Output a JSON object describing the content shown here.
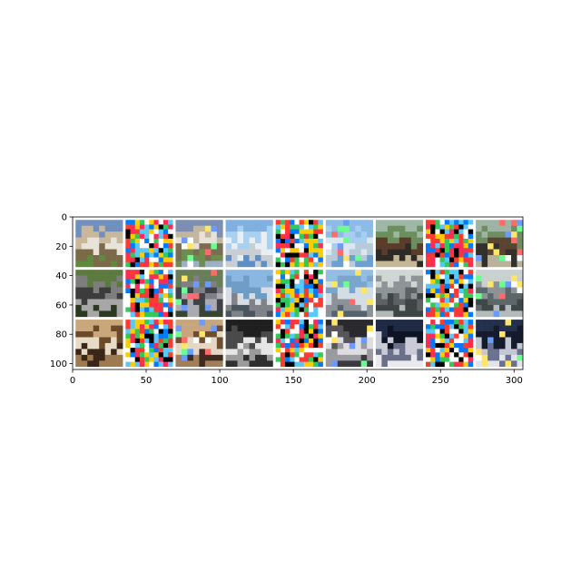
{
  "figure": {
    "type": "image-grid",
    "rows": 3,
    "cols": 9,
    "axis_color": "#000000",
    "background": "#ffffff",
    "tile_gap_color": "#ffffff"
  },
  "axes": {
    "x": {
      "range": [
        0,
        306
      ],
      "ticks": [
        {
          "value": 0,
          "label": "0"
        },
        {
          "value": 50,
          "label": "50"
        },
        {
          "value": 100,
          "label": "100"
        },
        {
          "value": 150,
          "label": "150"
        },
        {
          "value": 200,
          "label": "200"
        },
        {
          "value": 250,
          "label": "250"
        },
        {
          "value": 300,
          "label": "300"
        }
      ]
    },
    "y": {
      "range": [
        0,
        104
      ],
      "ticks": [
        {
          "value": 0,
          "label": "0"
        },
        {
          "value": 20,
          "label": "20"
        },
        {
          "value": 40,
          "label": "40"
        },
        {
          "value": 60,
          "label": "60"
        },
        {
          "value": 80,
          "label": "80"
        },
        {
          "value": 100,
          "label": "100"
        }
      ]
    }
  },
  "tiles": [
    [
      {
        "kind": "photo",
        "subject": "white horse in field",
        "colors": [
          "#6f8fbf",
          "#c9b79a",
          "#e8e3d8",
          "#7b6a4a",
          "#5f8a3d"
        ]
      },
      {
        "kind": "noise",
        "subject": "perturbation",
        "colors": [
          "#ff3b30",
          "#34c759",
          "#007aff",
          "#ffcc00",
          "#ff2d55",
          "#5ac8fa",
          "#ffffff",
          "#000000"
        ]
      },
      {
        "kind": "adversarial",
        "subject": "white horse in field",
        "colors": [
          "#7b8fb3",
          "#c2b6a0",
          "#e6e2d7",
          "#7a6d52",
          "#6c8d4d",
          "#9db0c5"
        ]
      },
      {
        "kind": "photo",
        "subject": "airplane in sky",
        "colors": [
          "#7fb0e0",
          "#a8d0f0",
          "#e9eef2",
          "#c9cdd4",
          "#5f8fc2"
        ]
      },
      {
        "kind": "noise",
        "subject": "perturbation",
        "colors": [
          "#ff3b30",
          "#34c759",
          "#007aff",
          "#ffcc00",
          "#ff2d55",
          "#5ac8fa",
          "#ffffff",
          "#000000"
        ]
      },
      {
        "kind": "adversarial",
        "subject": "airplane in sky",
        "colors": [
          "#8bbbe6",
          "#a7cdef",
          "#dbe7f0",
          "#b8c9d8",
          "#6d9fd0"
        ]
      },
      {
        "kind": "photo",
        "subject": "horse and rider",
        "colors": [
          "#9fb7a6",
          "#6a8f5c",
          "#5a3c2a",
          "#2e2a26",
          "#c3b797"
        ]
      },
      {
        "kind": "noise",
        "subject": "perturbation",
        "colors": [
          "#ff3b30",
          "#34c759",
          "#007aff",
          "#ffcc00",
          "#ff2d55",
          "#5ac8fa",
          "#ffffff",
          "#000000"
        ]
      },
      {
        "kind": "adversarial",
        "subject": "horse and rider",
        "colors": [
          "#9fb3a4",
          "#6f8d62",
          "#5b4332",
          "#32302b",
          "#bab19a"
        ]
      }
    ],
    [
      {
        "kind": "photo",
        "subject": "gray horse head",
        "colors": [
          "#5b7a3f",
          "#7d7d7d",
          "#3c3c3c",
          "#a7a7a7",
          "#2d3a22"
        ]
      },
      {
        "kind": "noise",
        "subject": "perturbation",
        "colors": [
          "#ff3b30",
          "#34c759",
          "#007aff",
          "#ffcc00",
          "#ff2d55",
          "#5ac8fa",
          "#ffffff",
          "#000000"
        ]
      },
      {
        "kind": "adversarial",
        "subject": "gray horse head",
        "colors": [
          "#667f57",
          "#7f7f85",
          "#3f4148",
          "#aaaab0",
          "#39452f"
        ]
      },
      {
        "kind": "photo",
        "subject": "airplane on runway",
        "colors": [
          "#8ab6e2",
          "#6d9cc7",
          "#d7dde2",
          "#7f8388",
          "#4a5560"
        ]
      },
      {
        "kind": "noise",
        "subject": "perturbation",
        "colors": [
          "#ff3b30",
          "#34c759",
          "#007aff",
          "#ffcc00",
          "#ff2d55",
          "#5ac8fa",
          "#ffffff",
          "#000000"
        ]
      },
      {
        "kind": "adversarial",
        "subject": "airplane on runway",
        "colors": [
          "#94bde5",
          "#7aa5cc",
          "#d3dde6",
          "#8b9298",
          "#56636f"
        ]
      },
      {
        "kind": "photo",
        "subject": "gray truck",
        "colors": [
          "#cfd6d3",
          "#8e9596",
          "#5c6263",
          "#3f4445",
          "#b1b8b6"
        ]
      },
      {
        "kind": "noise",
        "subject": "perturbation",
        "colors": [
          "#ff3b30",
          "#34c759",
          "#007aff",
          "#ffcc00",
          "#ff2d55",
          "#5ac8fa",
          "#ffffff",
          "#000000"
        ]
      },
      {
        "kind": "adversarial",
        "subject": "gray truck",
        "colors": [
          "#c8d1cf",
          "#8a9496",
          "#5d6668",
          "#3f4749",
          "#b3bcba"
        ]
      }
    ],
    [
      {
        "kind": "photo",
        "subject": "brown horse close-up",
        "colors": [
          "#c9a77a",
          "#6b4a2b",
          "#e8dcc6",
          "#3a2718",
          "#9d7a52"
        ]
      },
      {
        "kind": "noise",
        "subject": "perturbation",
        "colors": [
          "#ff3b30",
          "#34c759",
          "#007aff",
          "#ffcc00",
          "#ff2d55",
          "#5ac8fa",
          "#ffffff",
          "#000000"
        ]
      },
      {
        "kind": "adversarial",
        "subject": "brown horse close-up",
        "colors": [
          "#c7a67f",
          "#6e4d31",
          "#e4d8c5",
          "#3f2c1e",
          "#a07f5a"
        ]
      },
      {
        "kind": "photo",
        "subject": "white horse rearing",
        "colors": [
          "#1f1f1f",
          "#4a4a4a",
          "#e6e6e6",
          "#9b9b9b",
          "#2f2f2f"
        ]
      },
      {
        "kind": "noise",
        "subject": "perturbation",
        "colors": [
          "#ff3b30",
          "#34c759",
          "#007aff",
          "#ffcc00",
          "#ff2d55",
          "#5ac8fa",
          "#ffffff",
          "#000000"
        ]
      },
      {
        "kind": "adversarial",
        "subject": "white horse rearing",
        "colors": [
          "#2a2a2e",
          "#55555b",
          "#dedee2",
          "#9a9aa0",
          "#3a3a3f"
        ]
      },
      {
        "kind": "photo",
        "subject": "dark race car",
        "colors": [
          "#1f2a44",
          "#0e1424",
          "#c9ccd6",
          "#6a7088",
          "#e9e9ee"
        ]
      },
      {
        "kind": "noise",
        "subject": "perturbation",
        "colors": [
          "#ff3b30",
          "#34c759",
          "#007aff",
          "#ffcc00",
          "#ff2d55",
          "#5ac8fa",
          "#ffffff",
          "#000000"
        ]
      },
      {
        "kind": "adversarial",
        "subject": "dark race car",
        "colors": [
          "#24304b",
          "#141b2c",
          "#c4c8d2",
          "#6b7290",
          "#e2e4ea"
        ]
      }
    ]
  ]
}
